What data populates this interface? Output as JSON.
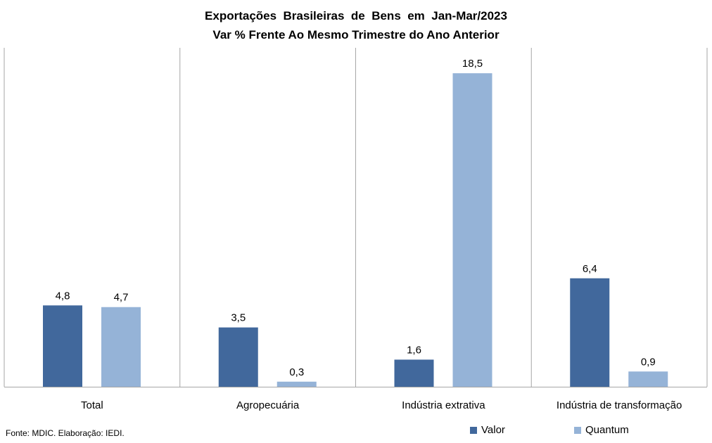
{
  "chart_data": {
    "type": "bar",
    "title": "Exportações  Brasileiras  de  Bens  em  Jan-Mar/2023",
    "subtitle": "Var % Frente Ao Mesmo Trimestre do Ano Anterior",
    "categories": [
      "Total",
      "Agropecuária",
      "Indústria extrativa",
      "Indústria de transformação"
    ],
    "series": [
      {
        "name": "Valor",
        "values": [
          4.8,
          3.5,
          1.6,
          6.4
        ],
        "labels": [
          "4,8",
          "3,5",
          "1,6",
          "6,4"
        ],
        "color": "#41689c"
      },
      {
        "name": "Quantum",
        "values": [
          4.7,
          0.3,
          18.5,
          0.9
        ],
        "labels": [
          "4,7",
          "0,3",
          "18,5",
          "0,9"
        ],
        "color": "#95b3d7"
      }
    ],
    "ylim": [
      0,
      20
    ],
    "xlabel": "",
    "ylabel": "",
    "grid": false,
    "legend_position": "bottom-right",
    "category_separators": true
  },
  "source_note": "Fonte: MDIC. Elaboração: IEDI."
}
